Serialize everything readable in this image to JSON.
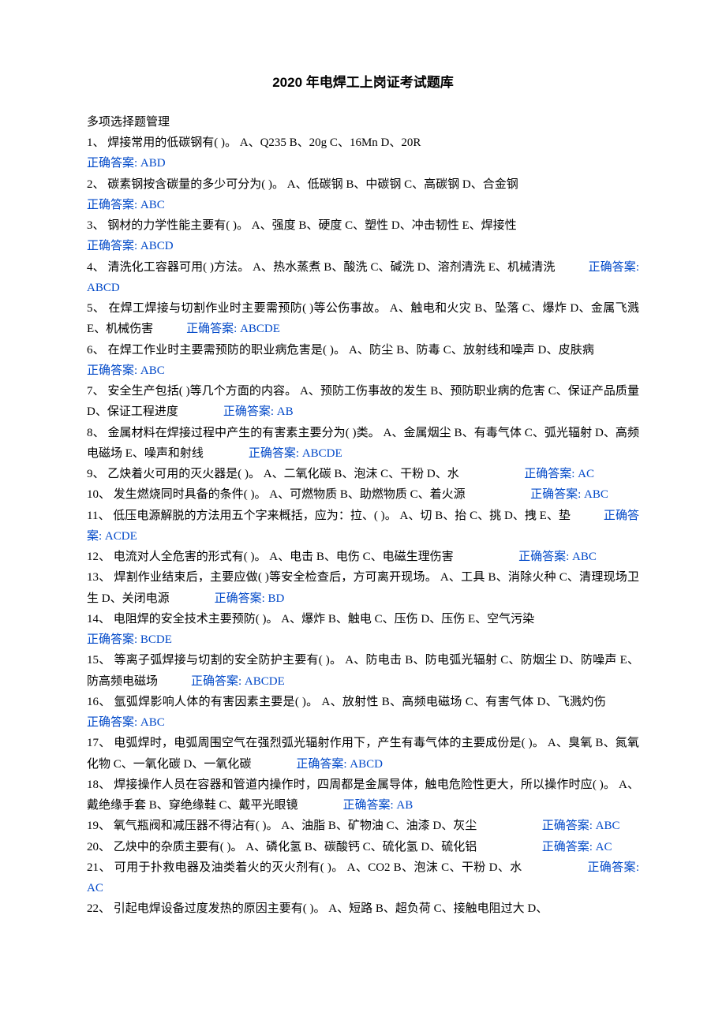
{
  "title": "2020 年电焊工上岗证考试题库",
  "section_header": "多项选择题管理",
  "answer_label": "正确答案:",
  "questions": [
    {
      "no": "1、",
      "stem": "焊接常用的低碳钢有(          )。",
      "opts": "A、Q235   B、20g   C、16Mn   D、20R",
      "ans": "ABD",
      "layout": "block-start"
    },
    {
      "no": "2、",
      "stem": "碳素钢按含碳量的多少可分为( )。",
      "opts": "A、低碳钢   B、中碳钢   C、高碳钢   D、合金钢",
      "ans": "ABC",
      "layout": "block-start"
    },
    {
      "no": "3、",
      "stem": "钢材的力学性能主要有( )。",
      "opts": "A、强度  B、硬度   C、塑性  D、冲击韧性  E、焊接性",
      "ans": "ABCD",
      "layout": "block-start"
    },
    {
      "no": "4、",
      "stem": "清洗化工容器可用( )方法。",
      "opts": "A、热水蒸煮  B、酸洗  C、碱洗   D、溶剂清洗  E、机械清洗",
      "ans": "ABCD",
      "layout": "inline-indent"
    },
    {
      "no": "5、",
      "stem": "在焊工焊接与切割作业时主要需预防( )等公伤事故。",
      "opts": "A、触电和火灾  B、坠落  C、爆炸   D、金属飞溅  E、机械伤害",
      "ans": "ABCDE",
      "layout": "inline-indent"
    },
    {
      "no": "6、",
      "stem": "在焊工作业时主要需预防的职业病危害是( )。",
      "opts": "A、防尘  B、防毒  C、放射线和噪声  D、皮肤病",
      "ans": "ABC",
      "layout": "inline-indent-lg"
    },
    {
      "no": "7、",
      "stem": "安全生产包括( )等几个方面的内容。",
      "opts": "A、预防工伤事故的发生  B、预防职业病的危害  C、保证产品质量   D、保证工程进度",
      "ans": "AB",
      "layout": "inline-indent-lg"
    },
    {
      "no": "8、",
      "stem": "金属材料在焊接过程中产生的有害素主要分为( )类。",
      "opts": "A、金属烟尘  B、有毒气体  C、弧光辐射  D、高频电磁场  E、噪声和射线",
      "ans": "ABCDE",
      "layout": "inline-indent-lg"
    },
    {
      "no": "9、",
      "stem": "乙炔着火可用的灭火器是( )。",
      "opts": "A、二氧化碳  B、泡沫  C、干粉   D、水",
      "ans": "AC",
      "layout": "inline-end"
    },
    {
      "no": "10、",
      "stem": "发生燃烧同时具备的条件( )。",
      "opts": "A、可燃物质  B、助燃物质  C、着火源",
      "ans": "ABC",
      "layout": "inline-end"
    },
    {
      "no": "11、",
      "stem": "低压电源解脱的方法用五个字来概括，应为：拉、( )。",
      "opts": "A、切  B、抬  C、挑   D、拽  E、垫",
      "ans": "ACDE",
      "layout": "inline-indent"
    },
    {
      "no": "12、",
      "stem": "电流对人全危害的形式有( )。",
      "opts": "A、电击  B、电伤  C、电磁生理伤害",
      "ans": "ABC",
      "layout": "inline-end"
    },
    {
      "no": "13、",
      "stem": "焊割作业结束后，主要应做( )等安全检查后，方可离开现场。",
      "opts": "A、工具  B、消除火种  C、清理现场卫生   D、关闭电源",
      "ans": "BD",
      "layout": "inline-indent-lg"
    },
    {
      "no": "14、",
      "stem": "电阻焊的安全技术主要预防( )。",
      "opts": "A、爆炸   B、触电  C、压伤   D、压伤   E、空气污染",
      "ans": "BCDE",
      "layout": "block-start"
    },
    {
      "no": "15、",
      "stem": "等离子弧焊接与切割的安全防护主要有( )。",
      "opts": "A、防电击  B、防电弧光辐射  C、防烟尘  D、防噪声  E、防高频电磁场",
      "ans": "ABCDE",
      "layout": "inline-indent"
    },
    {
      "no": "16、",
      "stem": "氩弧焊影响人体的有害因素主要是( )。",
      "opts": "A、放射性  B、高频电磁场  C、有害气体  D、飞溅灼伤",
      "ans": "ABC",
      "layout": "inline-indent"
    },
    {
      "no": "17、",
      "stem": "电弧焊时，电弧周围空气在强烈弧光辐射作用下，产生有毒气体的主要成份是( )。",
      "opts": "A、臭氧  B、氮氧化物  C、一氧化碳  D、一氧化碳",
      "ans": "ABCD",
      "layout": "inline-indent-lg"
    },
    {
      "no": "18、",
      "stem": "焊接操作人员在容器和管道内操作时，四周都是金属导体，触电危险性更大，所以操作时应( )。",
      "opts": "A、戴绝缘手套  B、穿绝缘鞋  C、戴平光眼镜",
      "ans": "AB",
      "layout": "inline-indent-lg"
    },
    {
      "no": "19、",
      "stem": "氧气瓶阀和减压器不得沾有( )。",
      "opts": "A、油脂  B、矿物油  C、油漆  D、灰尘",
      "ans": "ABC",
      "layout": "inline-end"
    },
    {
      "no": "20、",
      "stem": "乙炔中的杂质主要有( )。",
      "opts": "A、磷化氢  B、碳酸钙  C、硫化氢  D、硫化铝",
      "ans": "AC",
      "layout": "inline-end"
    },
    {
      "no": "21、",
      "stem": "可用于扑救电器及油类着火的灭火剂有( )。",
      "opts": "A、CO2 B、泡沫  C、干粉  D、水",
      "ans": "AC",
      "layout": "inline-end"
    },
    {
      "no": "22、",
      "stem": "引起电焊设备过度发热的原因主要有( )。",
      "opts": "A、短路  B、超负荷  C、接触电阻过大   D、",
      "ans": "",
      "layout": "partial"
    }
  ]
}
